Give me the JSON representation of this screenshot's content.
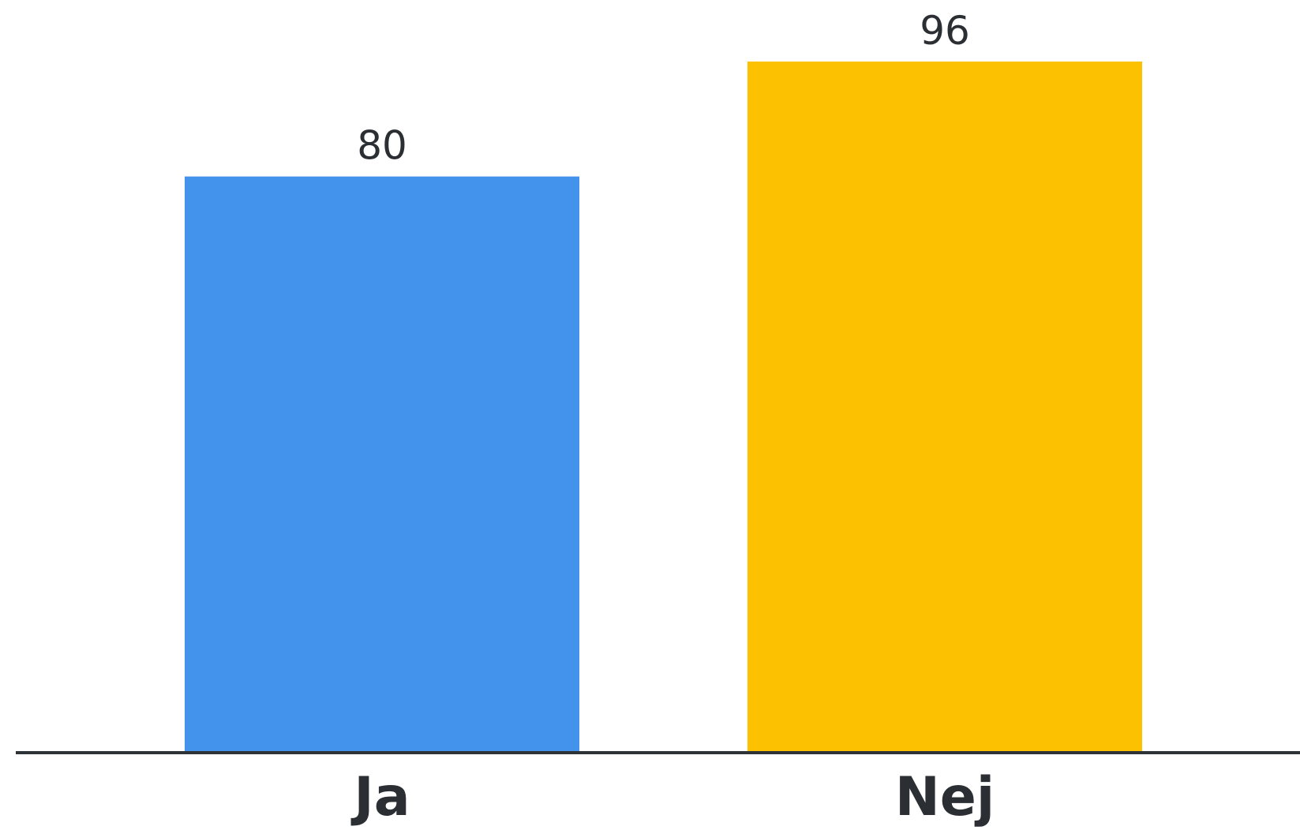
{
  "chart_data": {
    "type": "bar",
    "categories": [
      "Ja",
      "Nej"
    ],
    "values": [
      80,
      96
    ],
    "colors": [
      "#4392EB",
      "#FCC201"
    ],
    "data_labels": [
      "80",
      "96"
    ],
    "ylim": [
      0,
      96
    ],
    "grid": false,
    "legend": "none",
    "title": "",
    "xlabel": "",
    "ylabel": ""
  }
}
